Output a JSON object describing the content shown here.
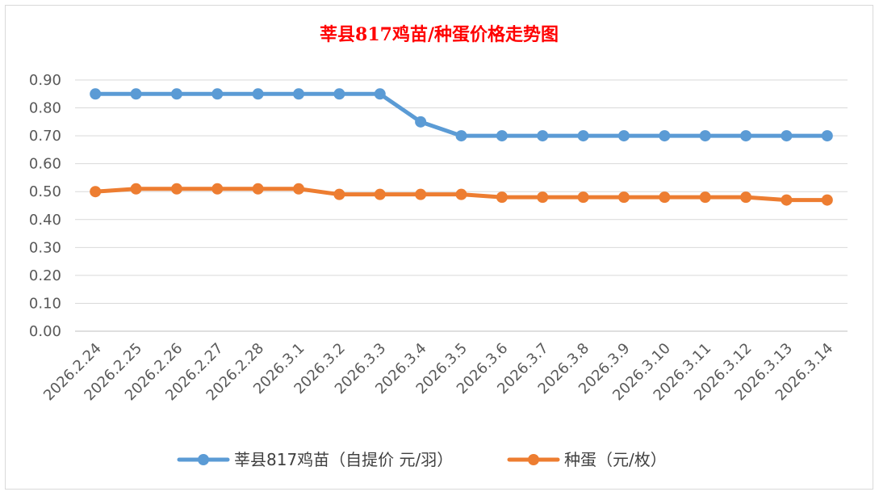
{
  "chart_data": {
    "type": "line",
    "title": "莘县817鸡苗/种蛋价格走势图",
    "xlabel": "",
    "ylabel": "",
    "ylim": [
      0,
      0.9
    ],
    "yticks": [
      "0.00",
      "0.10",
      "0.20",
      "0.30",
      "0.40",
      "0.50",
      "0.60",
      "0.70",
      "0.80",
      "0.90"
    ],
    "grid": true,
    "legend_position": "bottom",
    "categories": [
      "2026.2.24",
      "2026.2.25",
      "2026.2.26",
      "2026.2.27",
      "2026.2.28",
      "2026.3.1",
      "2026.3.2",
      "2026.3.3",
      "2026.3.4",
      "2026.3.5",
      "2026.3.6",
      "2026.3.7",
      "2026.3.8",
      "2026.3.9",
      "2026.3.10",
      "2026.3.11",
      "2026.3.12",
      "2026.3.13",
      "2026.3.14"
    ],
    "series": [
      {
        "name": "莘县817鸡苗（自提价 元/羽）",
        "color": "#5b9bd5",
        "values": [
          0.85,
          0.85,
          0.85,
          0.85,
          0.85,
          0.85,
          0.85,
          0.85,
          0.75,
          0.7,
          0.7,
          0.7,
          0.7,
          0.7,
          0.7,
          0.7,
          0.7,
          0.7,
          0.7
        ]
      },
      {
        "name": "种蛋（元/枚）",
        "color": "#ed7d31",
        "values": [
          0.5,
          0.51,
          0.51,
          0.51,
          0.51,
          0.51,
          0.49,
          0.49,
          0.49,
          0.49,
          0.48,
          0.48,
          0.48,
          0.48,
          0.48,
          0.48,
          0.48,
          0.47,
          0.47
        ]
      }
    ]
  }
}
